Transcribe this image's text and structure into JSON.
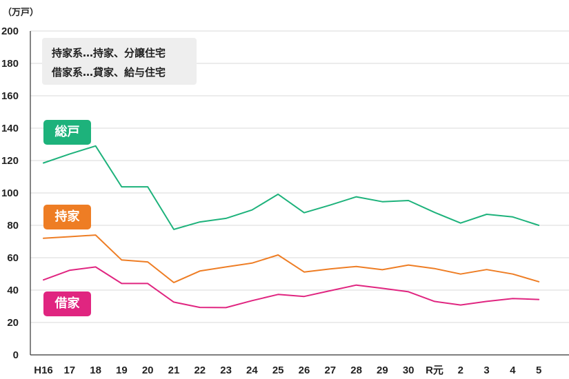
{
  "chart_data": {
    "type": "line",
    "unit_label": "（万戸）",
    "categories": [
      "H16",
      "17",
      "18",
      "19",
      "20",
      "21",
      "22",
      "23",
      "24",
      "25",
      "26",
      "27",
      "28",
      "29",
      "30",
      "R元",
      "2",
      "3",
      "4",
      "5"
    ],
    "ylim": [
      0,
      200
    ],
    "yticks": [
      0,
      20,
      40,
      60,
      80,
      100,
      120,
      140,
      160,
      180,
      200
    ],
    "grid": true,
    "series": [
      {
        "name": "総戸",
        "color": "#1db27b",
        "values": [
          118.5,
          124,
          129,
          103.8,
          103.8,
          77.5,
          82.1,
          84.3,
          89.5,
          99.2,
          87.8,
          92.5,
          97.6,
          94.6,
          95.3,
          88,
          81.4,
          86.8,
          85.2,
          80
        ]
      },
      {
        "name": "持家",
        "color": "#ee7d24",
        "values": [
          72,
          73,
          74,
          58.6,
          57.4,
          44.7,
          51.8,
          54.3,
          56.7,
          61.7,
          51.2,
          53.1,
          54.6,
          52.6,
          55.5,
          53.3,
          49.9,
          52.7,
          49.9,
          45.2
        ]
      },
      {
        "name": "借家",
        "color": "#e02580",
        "values": [
          46.3,
          52.2,
          54.3,
          44.1,
          44.1,
          32.6,
          29.3,
          29.2,
          33.5,
          37.3,
          36.1,
          39.6,
          43.1,
          41.1,
          39,
          33,
          30.8,
          33,
          34.8,
          34.2
        ]
      }
    ],
    "note_lines": [
      "持家系…持家、分譲住宅",
      "借家系…貸家、給与住宅"
    ]
  }
}
